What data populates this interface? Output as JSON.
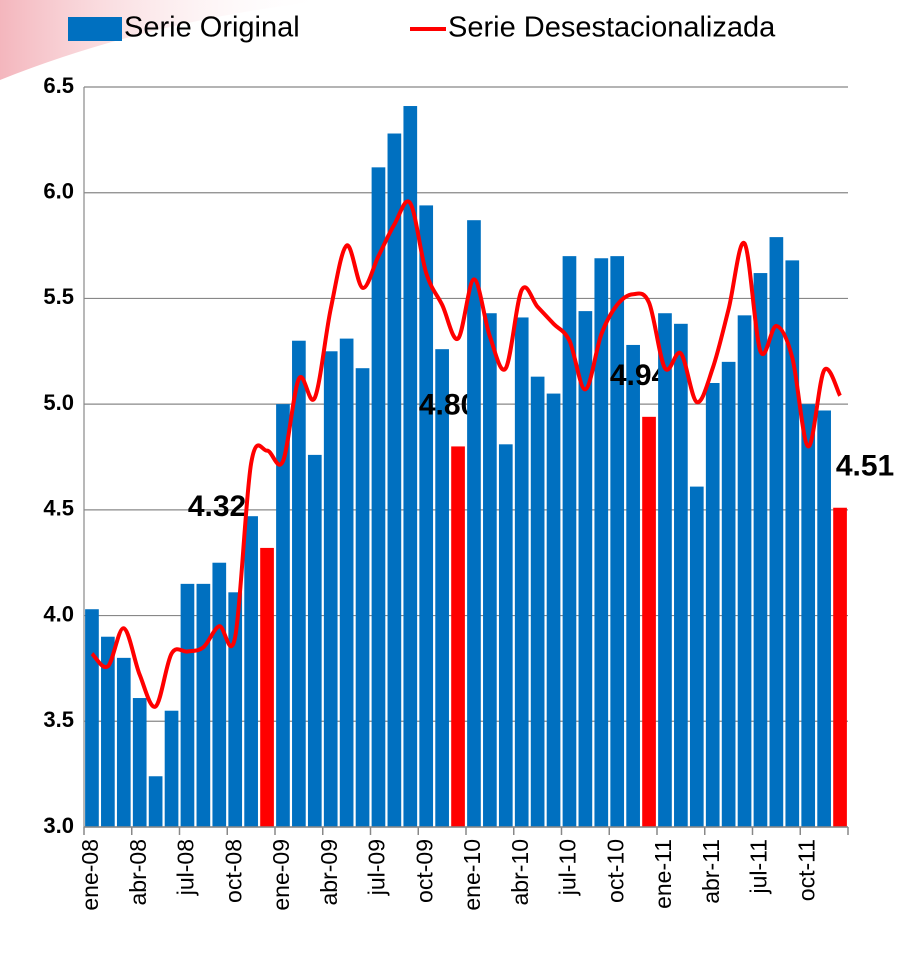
{
  "chart_data": {
    "type": "bar",
    "categories": [
      "ene-08",
      null,
      null,
      "abr-08",
      null,
      null,
      "jul-08",
      null,
      null,
      "oct-08",
      null,
      null,
      "ene-09",
      null,
      null,
      "abr-09",
      null,
      null,
      "jul-09",
      null,
      null,
      "oct-09",
      null,
      null,
      "ene-10",
      null,
      null,
      "abr-10",
      null,
      null,
      "jul-10",
      null,
      null,
      "oct-10",
      null,
      null,
      "ene-11",
      null,
      null,
      "abr-11",
      null,
      null,
      "jul-11",
      null,
      null,
      "oct-11",
      null,
      null
    ],
    "series": [
      {
        "name": "Serie Original",
        "type": "bar",
        "color": "#0070c0",
        "colors": [
          "#0070c0",
          "#0070c0",
          "#0070c0",
          "#0070c0",
          "#0070c0",
          "#0070c0",
          "#0070c0",
          "#0070c0",
          "#0070c0",
          "#0070c0",
          "#0070c0",
          "#ff0000",
          "#0070c0",
          "#0070c0",
          "#0070c0",
          "#0070c0",
          "#0070c0",
          "#0070c0",
          "#0070c0",
          "#0070c0",
          "#0070c0",
          "#0070c0",
          "#0070c0",
          "#ff0000",
          "#0070c0",
          "#0070c0",
          "#0070c0",
          "#0070c0",
          "#0070c0",
          "#0070c0",
          "#0070c0",
          "#0070c0",
          "#0070c0",
          "#0070c0",
          "#0070c0",
          "#ff0000",
          "#0070c0",
          "#0070c0",
          "#0070c0",
          "#0070c0",
          "#0070c0",
          "#0070c0",
          "#0070c0",
          "#0070c0",
          "#0070c0",
          "#0070c0",
          "#0070c0",
          "#ff0000"
        ],
        "values": [
          4.03,
          3.9,
          3.8,
          3.61,
          3.24,
          3.55,
          4.15,
          4.15,
          4.25,
          4.11,
          4.47,
          4.32,
          5.0,
          5.3,
          4.76,
          5.25,
          5.31,
          5.17,
          6.12,
          6.28,
          6.41,
          5.94,
          5.26,
          4.8,
          5.87,
          5.43,
          4.81,
          5.41,
          5.13,
          5.05,
          5.7,
          5.44,
          5.69,
          5.7,
          5.28,
          4.94,
          5.43,
          5.38,
          4.61,
          5.1,
          5.2,
          5.42,
          5.62,
          5.79,
          5.68,
          5.0,
          4.97,
          4.51
        ],
        "value_labels": [
          null,
          null,
          null,
          null,
          null,
          null,
          null,
          null,
          null,
          null,
          null,
          "4.32",
          null,
          null,
          null,
          null,
          null,
          null,
          null,
          null,
          null,
          null,
          null,
          "4.80",
          null,
          null,
          null,
          null,
          null,
          null,
          null,
          null,
          null,
          null,
          null,
          "4.94",
          null,
          null,
          null,
          null,
          null,
          null,
          null,
          null,
          null,
          null,
          null,
          "4.51"
        ]
      },
      {
        "name": "Serie Desestacionalizada",
        "type": "line",
        "color": "#ff0000",
        "values": [
          3.82,
          3.76,
          3.94,
          3.72,
          3.57,
          3.82,
          3.83,
          3.85,
          3.95,
          3.9,
          4.72,
          4.78,
          4.73,
          5.12,
          5.03,
          5.45,
          5.75,
          5.55,
          5.7,
          5.85,
          5.95,
          5.62,
          5.47,
          5.31,
          5.59,
          5.32,
          5.17,
          5.54,
          5.46,
          5.38,
          5.3,
          5.07,
          5.33,
          5.47,
          5.52,
          5.48,
          5.17,
          5.24,
          5.01,
          5.17,
          5.45,
          5.76,
          5.25,
          5.37,
          5.22,
          4.8,
          5.16,
          5.04
        ]
      }
    ],
    "ylim": [
      3,
      6.5
    ],
    "yticks": [
      {
        "value": 3,
        "label": "3.0"
      },
      {
        "value": 3.5,
        "label": "3.5"
      },
      {
        "value": 4,
        "label": "4.0"
      },
      {
        "value": 4.5,
        "label": "4.5"
      },
      {
        "value": 5,
        "label": "5.0"
      },
      {
        "value": 5.5,
        "label": "5.5"
      },
      {
        "value": 6,
        "label": "6.0"
      },
      {
        "value": 6.5,
        "label": "6.5"
      }
    ],
    "grid": true
  }
}
